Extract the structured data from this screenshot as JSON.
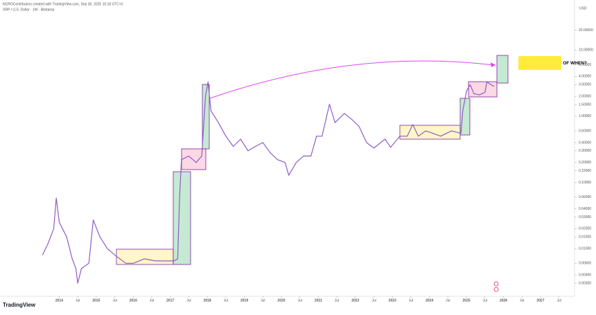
{
  "header": {
    "credit": "NCROContributors created with TradingView.com, Sep 30, 2025 15:18 UTC+2",
    "symbol": "XRP / U.S. Dollar · 1W · Bitstamp"
  },
  "footer": {
    "logo": "TradingView"
  },
  "chart_data": {
    "type": "line",
    "log_scale": true,
    "grid": false,
    "y_axis_label": "USD",
    "annotation": "JUST A QUESTION OF WHEN?",
    "xlim": [
      2012.4,
      2027.9
    ],
    "ylim": [
      0.0019,
      37
    ],
    "xticks": [
      2014,
      {
        "value": 2014.5,
        "label": "Jul"
      },
      2015,
      {
        "value": 2015.5,
        "label": "Jul"
      },
      2016,
      {
        "value": 2016.5,
        "label": "Jul"
      },
      2017,
      {
        "value": 2017.5,
        "label": "Jul"
      },
      2018,
      {
        "value": 2018.5,
        "label": "Jul"
      },
      2019,
      {
        "value": 2019.5,
        "label": "Jul"
      },
      2020,
      {
        "value": 2020.5,
        "label": "Jul"
      },
      2021,
      {
        "value": 2021.5,
        "label": "Jul"
      },
      2022,
      {
        "value": 2022.5,
        "label": "Jul"
      },
      2023,
      {
        "value": 2023.5,
        "label": "Jul"
      },
      2024,
      {
        "value": 2024.5,
        "label": "Jul"
      },
      2025,
      {
        "value": 2025.5,
        "label": "Jul"
      },
      2026,
      {
        "value": 2026.5,
        "label": "Jul"
      },
      2027,
      {
        "value": 2027.5,
        "label": "Jul"
      }
    ],
    "yticks": [
      {
        "value": 20,
        "label": "20.00000"
      },
      {
        "value": 10,
        "label": "10.00000"
      },
      {
        "value": 6,
        "label": "6.00000"
      },
      {
        "value": 4,
        "label": "4.00000"
      },
      {
        "value": 3,
        "label": "3.00000"
      },
      {
        "value": 2,
        "label": "2.00000"
      },
      {
        "value": 1.5,
        "label": "1.50000"
      },
      {
        "value": 1,
        "label": "1.00000"
      },
      {
        "value": 0.6,
        "label": "0.60000"
      },
      {
        "value": 0.4,
        "label": "0.40000"
      },
      {
        "value": 0.3,
        "label": "0.30000"
      },
      {
        "value": 0.2,
        "label": "0.20000"
      },
      {
        "value": 0.15,
        "label": "0.15000"
      },
      {
        "value": 0.1,
        "label": "0.10000"
      },
      {
        "value": 0.06,
        "label": "0.06000"
      },
      {
        "value": 0.04,
        "label": "0.04000"
      },
      {
        "value": 0.03,
        "label": "0.03000"
      },
      {
        "value": 0.02,
        "label": "0.02000"
      },
      {
        "value": 0.015,
        "label": "0.01500"
      },
      {
        "value": 0.01,
        "label": "0.01000"
      },
      {
        "value": 0.006,
        "label": "0.00600"
      },
      {
        "value": 0.004,
        "label": "0.00400"
      },
      {
        "value": 0.003,
        "label": "0.00300"
      }
    ],
    "series": [
      {
        "name": "XRP / U.S. Dollar",
        "color": "#8e5bc7",
        "x": [
          2013.55,
          2013.7,
          2013.85,
          2013.92,
          2014.0,
          2014.2,
          2014.35,
          2014.45,
          2014.5,
          2014.6,
          2014.8,
          2014.92,
          2015.1,
          2015.3,
          2015.5,
          2015.8,
          2016.0,
          2016.3,
          2016.6,
          2016.9,
          2017.1,
          2017.2,
          2017.25,
          2017.3,
          2017.5,
          2017.7,
          2017.85,
          2017.95,
          2018.02,
          2018.1,
          2018.3,
          2018.5,
          2018.7,
          2018.9,
          2019.1,
          2019.3,
          2019.5,
          2019.7,
          2019.9,
          2020.1,
          2020.2,
          2020.4,
          2020.6,
          2020.8,
          2020.95,
          2021.1,
          2021.3,
          2021.45,
          2021.7,
          2021.9,
          2022.1,
          2022.3,
          2022.5,
          2022.8,
          2022.95,
          2023.2,
          2023.4,
          2023.55,
          2023.7,
          2023.9,
          2024.1,
          2024.3,
          2024.6,
          2024.85,
          2024.9,
          2025.0,
          2025.1,
          2025.2,
          2025.35,
          2025.5,
          2025.55,
          2025.7,
          2025.75
        ],
        "values": [
          0.008,
          0.012,
          0.02,
          0.058,
          0.025,
          0.015,
          0.007,
          0.005,
          0.003,
          0.005,
          0.006,
          0.027,
          0.015,
          0.01,
          0.008,
          0.006,
          0.006,
          0.007,
          0.0065,
          0.0065,
          0.0065,
          0.007,
          0.058,
          0.22,
          0.25,
          0.2,
          0.25,
          2.0,
          3.3,
          1.2,
          0.8,
          0.5,
          0.35,
          0.45,
          0.3,
          0.35,
          0.4,
          0.28,
          0.22,
          0.2,
          0.128,
          0.2,
          0.25,
          0.25,
          0.5,
          0.5,
          1.52,
          0.8,
          1.1,
          0.9,
          0.7,
          0.4,
          0.33,
          0.45,
          0.34,
          0.5,
          0.5,
          0.75,
          0.5,
          0.6,
          0.55,
          0.5,
          0.6,
          0.55,
          1.2,
          2.4,
          3.0,
          2.2,
          2.1,
          2.3,
          3.3,
          2.9,
          2.85
        ]
      }
    ]
  }
}
